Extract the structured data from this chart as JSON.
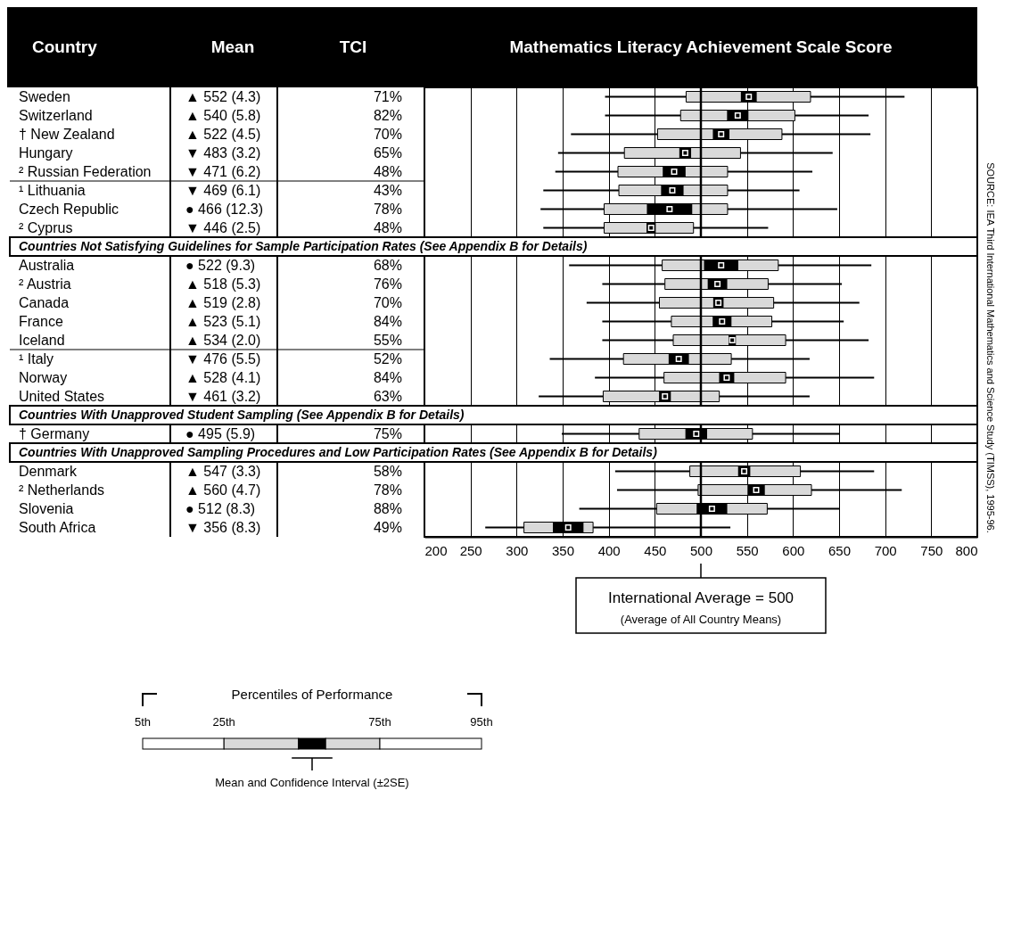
{
  "chart_data": {
    "type": "box",
    "orientation": "horizontal",
    "title": "Mathematics Literacy Achievement Scale Score",
    "ylabel": "Country",
    "categories": [
      "Sweden",
      "Switzerland",
      "† New Zealand",
      "Hungary",
      "² Russian Federation",
      "¹ Lithuania",
      "Czech Republic",
      "² Cyprus",
      "Countries Not Satisfying Guidelines for Sample Participation Rates (See Appendix B for Details)",
      "Australia",
      "² Austria",
      "Canada",
      "France",
      "Iceland",
      "¹ Italy",
      "Norway",
      "United States",
      "Countries With Unapproved Student Sampling (See Appendix B for Details)",
      "† Germany",
      "Countries With Unapproved Sampling Procedures and Low Participation Rates (See Appendix B for Details)",
      "Denmark",
      "² Netherlands",
      "Slovenia",
      "South Africa"
    ],
    "series": [
      {
        "type": "box",
        "color": "#d9d9d9",
        "boxes": [
          {
            "low": 396,
            "q1": 484,
            "q3": 619,
            "high": 721
          },
          {
            "low": 396,
            "q1": 478,
            "q3": 602,
            "high": 682
          },
          {
            "low": 359,
            "q1": 453,
            "q3": 588,
            "high": 684
          },
          {
            "low": 345,
            "q1": 417,
            "q3": 543,
            "high": 643
          },
          {
            "low": 342,
            "q1": 410,
            "q3": 529,
            "high": 621
          },
          {
            "low": 329,
            "q1": 411,
            "q3": 529,
            "high": 607
          },
          {
            "low": 326,
            "q1": 395,
            "q3": 529,
            "high": 648
          },
          {
            "low": 329,
            "q1": 395,
            "q3": 492,
            "high": 573
          },
          null,
          {
            "low": 357,
            "q1": 458,
            "q3": 584,
            "high": 685
          },
          {
            "low": 393,
            "q1": 461,
            "q3": 573,
            "high": 653
          },
          {
            "low": 376,
            "q1": 455,
            "q3": 579,
            "high": 672
          },
          {
            "low": 393,
            "q1": 468,
            "q3": 577,
            "high": 655
          },
          {
            "low": 393,
            "q1": 470,
            "q3": 592,
            "high": 682
          },
          {
            "low": 336,
            "q1": 416,
            "q3": 533,
            "high": 618
          },
          {
            "low": 385,
            "q1": 460,
            "q3": 592,
            "high": 688
          },
          {
            "low": 324,
            "q1": 394,
            "q3": 520,
            "high": 618
          },
          null,
          {
            "low": 349,
            "q1": 433,
            "q3": 556,
            "high": 650
          },
          null,
          {
            "low": 407,
            "q1": 488,
            "q3": 608,
            "high": 688
          },
          {
            "low": 409,
            "q1": 497,
            "q3": 620,
            "high": 718
          },
          {
            "low": 368,
            "q1": 452,
            "q3": 572,
            "high": 650
          },
          {
            "low": 266,
            "q1": 308,
            "q3": 383,
            "high": 532
          }
        ]
      },
      {
        "type": "scatter",
        "color": "#000000",
        "values": [
          552,
          540,
          522,
          483,
          471,
          469,
          466,
          446,
          null,
          522,
          518,
          519,
          523,
          534,
          476,
          528,
          461,
          null,
          495,
          null,
          547,
          560,
          512,
          356
        ],
        "errors": [
          8.6,
          11.6,
          9,
          6.4,
          12.4,
          12.2,
          24.6,
          5,
          null,
          18.6,
          10.6,
          5.6,
          10.2,
          4,
          11,
          8.2,
          6.4,
          null,
          11.8,
          null,
          6.6,
          9.4,
          16.6,
          16.6
        ]
      }
    ],
    "marker": "square",
    "xlim": [
      200,
      800
    ],
    "xticks": [
      200,
      250,
      300,
      350,
      400,
      450,
      500,
      550,
      600,
      650,
      700,
      750,
      800
    ],
    "grid": "x",
    "ref_lines": [
      {
        "axis": "x",
        "value": 500,
        "label": "International Average = 500",
        "color": "#000000"
      }
    ],
    "annotations": [
      "Mean",
      "TCI",
      "Percentiles of Performance",
      "5th",
      "25th",
      "75th",
      "95th",
      "Mean and Confidence Interval (±2SE)",
      "(Average of All Country Means)",
      "SOURCE: IEA Third International Mathematics and Science Study (TIMSS), 1995-96.",
      "▲ 552 (4.3)",
      "71%",
      "▲ 540 (5.8)",
      "82%",
      "▲ 522 (4.5)",
      "70%",
      "▼ 483 (3.2)",
      "65%",
      "▼ 471 (6.2)",
      "48%",
      "▼ 469 (6.1)",
      "43%",
      "● 466 (12.3)",
      "78%",
      "▼ 446 (2.5)",
      "48%",
      "● 522 (9.3)",
      "68%",
      "▲ 518 (5.3)",
      "76%",
      "▲ 519 (2.8)",
      "70%",
      "▲ 523 (5.1)",
      "84%",
      "▲ 534 (2.0)",
      "55%",
      "▼ 476 (5.5)",
      "52%",
      "▲ 528 (4.1)",
      "84%",
      "▼ 461 (3.2)",
      "63%",
      "● 495 (5.9)",
      "75%",
      "▲ 547 (3.3)",
      "58%",
      "▲ 560 (4.7)",
      "78%",
      "● 512 (8.3)",
      "88%",
      "▼ 356 (8.3)",
      "49%"
    ]
  }
}
